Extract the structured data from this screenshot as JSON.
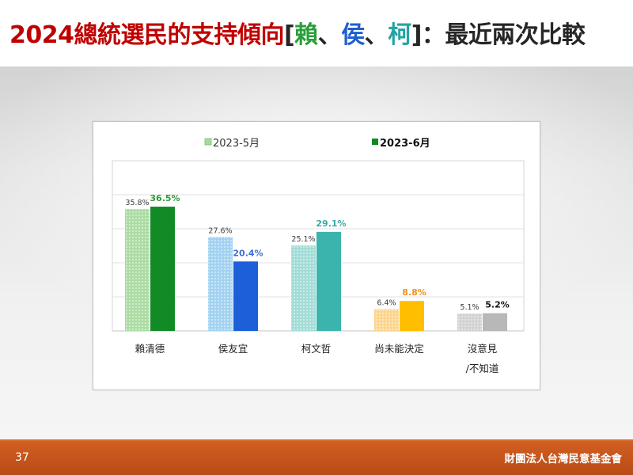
{
  "slide": {
    "title_parts": [
      {
        "text": "2024總統選民的支持傾向",
        "color": "#c00000"
      },
      {
        "text": "[",
        "color": "#262626"
      },
      {
        "text": "賴",
        "color": "#2a9e3a"
      },
      {
        "text": "、",
        "color": "#262626"
      },
      {
        "text": "侯",
        "color": "#1f5fcf"
      },
      {
        "text": "、",
        "color": "#262626"
      },
      {
        "text": "柯",
        "color": "#26a3a3"
      },
      {
        "text": "]：最近兩次比較",
        "color": "#262626"
      }
    ],
    "page_number": "37",
    "organization": "財團法人台灣民意基金會"
  },
  "chart_data": {
    "type": "bar",
    "categories": [
      "賴清德",
      "侯友宜",
      "柯文哲",
      "尚未能決定",
      "沒意見\n/不知道"
    ],
    "series": [
      {
        "name": "2023-5月",
        "values": [
          35.8,
          27.6,
          25.1,
          6.4,
          5.1
        ],
        "data_labels": [
          "35.8%",
          "27.6%",
          "25.1%",
          "6.4%",
          "5.1%"
        ],
        "legend_color": "#a3db9b",
        "colors": [
          "#acdca4",
          "#a3d2f1",
          "#a3dcd7",
          "#fdd58e",
          "#d2d2d2"
        ],
        "label_colors": [
          "#404040",
          "#404040",
          "#404040",
          "#404040",
          "#404040"
        ]
      },
      {
        "name": "2023-6月",
        "values": [
          36.5,
          20.4,
          29.1,
          8.8,
          5.2
        ],
        "data_labels": [
          "36.5%",
          "20.4%",
          "29.1%",
          "8.8%",
          "5.2%"
        ],
        "legend_color": "#0f8a23",
        "colors": [
          "#128a25",
          "#1d5fd8",
          "#3bb4ad",
          "#ffbf00",
          "#b8b8b8"
        ],
        "label_colors": [
          "#2f9a35",
          "#3a70d8",
          "#36aaa8",
          "#f0901e",
          "#111111"
        ]
      }
    ],
    "ylim": [
      0,
      50
    ],
    "grid": true,
    "legend": "top"
  }
}
